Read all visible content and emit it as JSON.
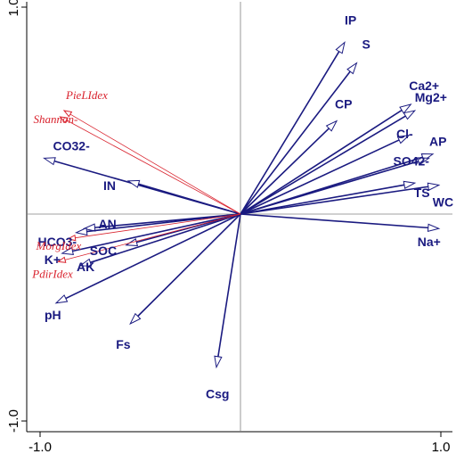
{
  "chart_data": {
    "type": "scatter",
    "subtype": "rda-biplot",
    "title": "",
    "xlabel": "",
    "ylabel": "",
    "xlim": [
      -1.05,
      1.05
    ],
    "ylim": [
      -1.05,
      1.05
    ],
    "x_ticks": [
      {
        "value": -1.0,
        "label": "-1.0"
      },
      {
        "value": 1.0,
        "label": "1.0"
      }
    ],
    "y_ticks": [
      {
        "value": 1.0,
        "label": "1.0"
      },
      {
        "value": -1.0,
        "label": "-1.0"
      }
    ],
    "zero_lines": true,
    "grid": false,
    "legend": "none",
    "colors": {
      "environment": "#1a1a80",
      "species": "#d9232e",
      "zero_line": "#808080",
      "frame": "#000000"
    },
    "series": [
      {
        "kind": "environment",
        "vectors": [
          {
            "label": "IP",
            "x": 0.52,
            "y": 0.83
          },
          {
            "label": "S",
            "x": 0.58,
            "y": 0.73
          },
          {
            "label": "CP",
            "x": 0.48,
            "y": 0.45
          },
          {
            "label": "Ca2+",
            "x": 0.85,
            "y": 0.53
          },
          {
            "label": "Mg2+",
            "x": 0.87,
            "y": 0.5
          },
          {
            "label": "Cl-",
            "x": 0.84,
            "y": 0.38
          },
          {
            "label": "AP",
            "x": 0.96,
            "y": 0.29
          },
          {
            "label": "SO42-",
            "x": 0.94,
            "y": 0.27
          },
          {
            "label": "TS",
            "x": 0.87,
            "y": 0.15
          },
          {
            "label": "WC",
            "x": 0.99,
            "y": 0.14
          },
          {
            "label": "Na+",
            "x": 0.99,
            "y": -0.07
          },
          {
            "label": "CO32-",
            "x": -0.98,
            "y": 0.27
          },
          {
            "label": "IN",
            "x": -0.56,
            "y": 0.16
          },
          {
            "label": "AN",
            "x": -0.78,
            "y": -0.07
          },
          {
            "label": "HCO3-",
            "x": -0.82,
            "y": -0.09
          },
          {
            "label": "K+",
            "x": -0.89,
            "y": -0.19
          },
          {
            "label": "AK",
            "x": -0.8,
            "y": -0.25
          },
          {
            "label": "SOC",
            "x": -0.57,
            "y": -0.15
          },
          {
            "label": "pH",
            "x": -0.92,
            "y": -0.43
          },
          {
            "label": "Fs",
            "x": -0.55,
            "y": -0.53
          },
          {
            "label": "Csg",
            "x": -0.12,
            "y": -0.74
          }
        ]
      },
      {
        "kind": "species",
        "vectors": [
          {
            "label": "PieLIdex",
            "x": -0.88,
            "y": 0.5
          },
          {
            "label": "Shannon-",
            "x": -0.9,
            "y": 0.47
          },
          {
            "label": "MorgIdex",
            "x": -0.86,
            "y": -0.12
          },
          {
            "label": "PdirIdex",
            "x": -0.91,
            "y": -0.23
          }
        ]
      }
    ]
  }
}
